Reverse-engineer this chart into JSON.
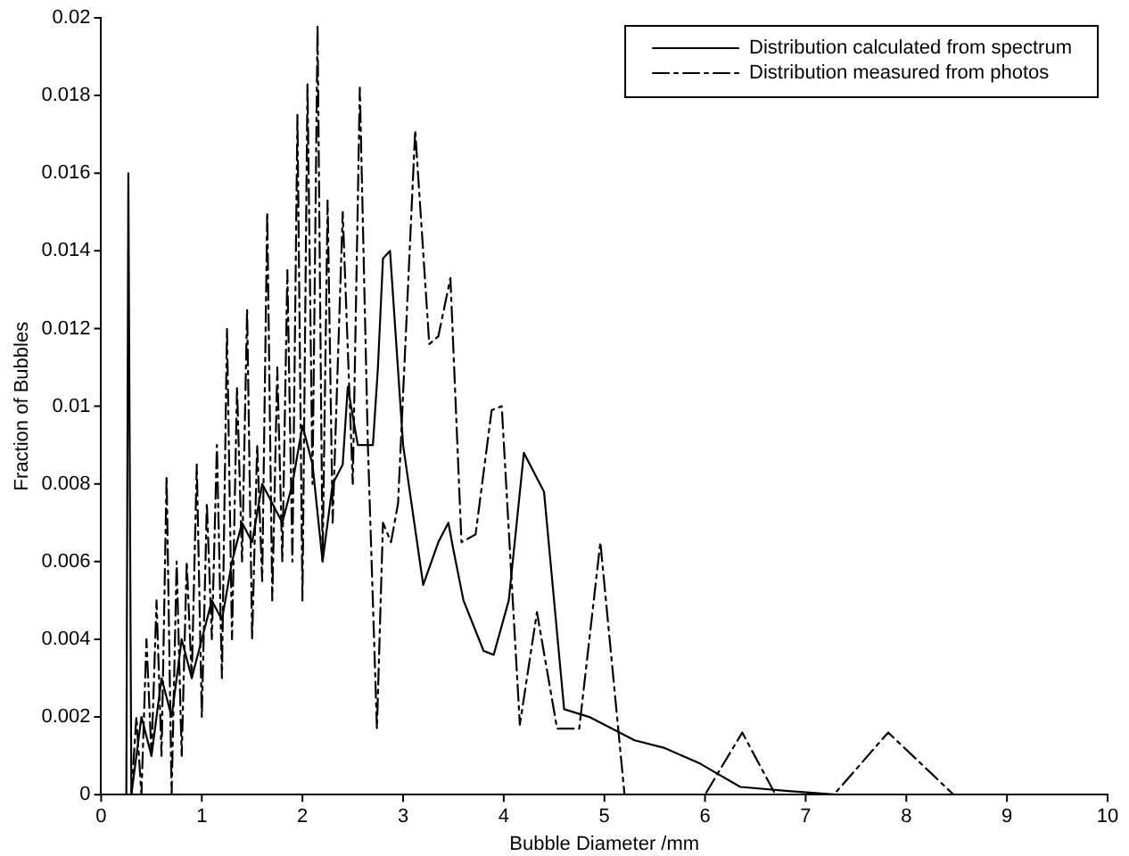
{
  "chart_data": {
    "type": "line",
    "xlabel": "Bubble Diameter /mm",
    "ylabel": "Fraction of Bubbles",
    "xlim": [
      0,
      10
    ],
    "ylim": [
      0,
      0.02
    ],
    "xticks": [
      0,
      1,
      2,
      3,
      4,
      5,
      6,
      7,
      8,
      9,
      10
    ],
    "yticks": [
      0,
      0.002,
      0.004,
      0.006,
      0.008,
      0.01,
      0.012,
      0.014,
      0.016,
      0.018,
      0.02
    ],
    "legend": "top right",
    "marker": "none",
    "series": [
      {
        "name": "Distribution calculated from spectrum",
        "color": "#000000",
        "line_style": "solid",
        "x": [
          0.25,
          0.27,
          0.3,
          0.35,
          0.4,
          0.5,
          0.6,
          0.7,
          0.8,
          0.9,
          1.0,
          1.1,
          1.2,
          1.3,
          1.4,
          1.5,
          1.6,
          1.7,
          1.8,
          1.9,
          2.0,
          2.1,
          2.2,
          2.3,
          2.4,
          2.45,
          2.55,
          2.7,
          2.75,
          2.8,
          2.87,
          3.0,
          3.2,
          3.35,
          3.45,
          3.5,
          3.6,
          3.8,
          3.9,
          4.05,
          4.2,
          4.4,
          4.6,
          4.85,
          5.3,
          5.6,
          5.95,
          6.35,
          6.8,
          7.3,
          10
        ],
        "values": [
          0,
          0.016,
          0,
          0.001,
          0.002,
          0.001,
          0.003,
          0.002,
          0.004,
          0.003,
          0.004,
          0.005,
          0.0045,
          0.006,
          0.007,
          0.0065,
          0.008,
          0.0075,
          0.007,
          0.008,
          0.0095,
          0.0085,
          0.006,
          0.008,
          0.0085,
          0.0105,
          0.009,
          0.009,
          0.011,
          0.0138,
          0.014,
          0.009,
          0.0054,
          0.0065,
          0.007,
          0.0063,
          0.005,
          0.0037,
          0.0036,
          0.005,
          0.0088,
          0.0078,
          0.0022,
          0.002,
          0.0014,
          0.0012,
          0.0008,
          0.0002,
          0.0001,
          0,
          0
        ]
      },
      {
        "name": "Distribution measured from photos",
        "color": "#000000",
        "line_style": "dashed",
        "x": [
          0.3,
          0.35,
          0.4,
          0.45,
          0.5,
          0.55,
          0.6,
          0.65,
          0.7,
          0.75,
          0.8,
          0.85,
          0.9,
          0.95,
          1.0,
          1.05,
          1.1,
          1.15,
          1.2,
          1.25,
          1.3,
          1.35,
          1.4,
          1.45,
          1.5,
          1.55,
          1.6,
          1.65,
          1.7,
          1.75,
          1.8,
          1.85,
          1.9,
          1.95,
          2.0,
          2.05,
          2.1,
          2.15,
          2.2,
          2.25,
          2.3,
          2.4,
          2.5,
          2.57,
          2.65,
          2.74,
          2.8,
          2.88,
          2.95,
          3.12,
          3.26,
          3.35,
          3.47,
          3.58,
          3.72,
          3.88,
          3.98,
          4.16,
          4.33,
          4.53,
          4.75,
          4.96,
          5.2,
          6.0,
          6.37,
          6.7,
          7.28,
          7.82,
          8.47,
          10
        ],
        "values": [
          0,
          0.002,
          0,
          0.004,
          0.001,
          0.005,
          0.001,
          0.0082,
          0,
          0.006,
          0.001,
          0.006,
          0.003,
          0.0085,
          0.002,
          0.0075,
          0.004,
          0.009,
          0.003,
          0.012,
          0.004,
          0.0105,
          0.006,
          0.0125,
          0.004,
          0.009,
          0.0055,
          0.015,
          0.005,
          0.011,
          0.006,
          0.0135,
          0.006,
          0.0175,
          0.005,
          0.0183,
          0.008,
          0.0198,
          0.006,
          0.0153,
          0.007,
          0.015,
          0.008,
          0.0182,
          0.009,
          0.0017,
          0.007,
          0.0065,
          0.0075,
          0.0171,
          0.0116,
          0.0118,
          0.0133,
          0.0065,
          0.0067,
          0.0099,
          0.01,
          0.0018,
          0.0047,
          0.0017,
          0.0017,
          0.0065,
          0,
          0,
          0.0016,
          0,
          0,
          0.0016,
          0,
          0
        ]
      }
    ]
  }
}
